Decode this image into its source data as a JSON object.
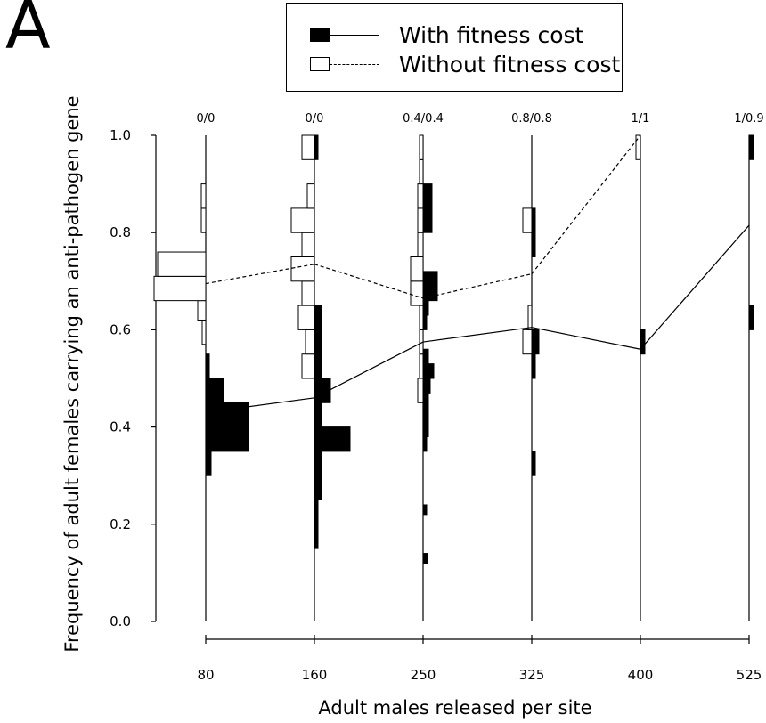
{
  "panel_label": "A",
  "legend": {
    "with_cost": "With fitness cost",
    "without_cost": "Without fitness cost"
  },
  "chart_data": {
    "type": "violin-histogram",
    "xlabel": "Adult males released per site",
    "ylabel": "Frequency of adult females carrying an anti-pathogen gene",
    "ylim": [
      0,
      1
    ],
    "yticks": [
      "0.0",
      "0.2",
      "0.4",
      "0.6",
      "0.8",
      "1.0"
    ],
    "categories": [
      "80",
      "160",
      "250",
      "325",
      "400",
      "525"
    ],
    "top_labels": [
      "0/0",
      "0/0",
      "0.4/0.4",
      "0.8/0.8",
      "1/1",
      "1/0.9"
    ],
    "series": [
      {
        "name": "With fitness cost",
        "side": "right",
        "style": "filled",
        "means": [
          0.43,
          0.46,
          0.575,
          0.605,
          0.56,
          0.815
        ],
        "histograms": [
          [
            [
              0.3,
              0.35,
              6
            ],
            [
              0.35,
              0.4,
              48
            ],
            [
              0.4,
              0.45,
              48
            ],
            [
              0.45,
              0.5,
              20
            ],
            [
              0.5,
              0.55,
              4
            ]
          ],
          [
            [
              0.15,
              0.2,
              4
            ],
            [
              0.2,
              0.25,
              4
            ],
            [
              0.25,
              0.3,
              8
            ],
            [
              0.3,
              0.35,
              8
            ],
            [
              0.35,
              0.4,
              40
            ],
            [
              0.4,
              0.45,
              8
            ],
            [
              0.45,
              0.5,
              18
            ],
            [
              0.5,
              0.55,
              8
            ],
            [
              0.55,
              0.6,
              8
            ],
            [
              0.6,
              0.65,
              8
            ],
            [
              0.95,
              1.0,
              4
            ]
          ],
          [
            [
              0.12,
              0.14,
              5
            ],
            [
              0.22,
              0.24,
              4
            ],
            [
              0.35,
              0.38,
              4
            ],
            [
              0.38,
              0.41,
              6
            ],
            [
              0.41,
              0.44,
              6
            ],
            [
              0.44,
              0.47,
              6
            ],
            [
              0.47,
              0.5,
              8
            ],
            [
              0.5,
              0.53,
              12
            ],
            [
              0.53,
              0.56,
              6
            ],
            [
              0.6,
              0.63,
              4
            ],
            [
              0.63,
              0.66,
              6
            ],
            [
              0.66,
              0.69,
              16
            ],
            [
              0.69,
              0.72,
              16
            ],
            [
              0.8,
              0.85,
              10
            ],
            [
              0.85,
              0.9,
              10
            ]
          ],
          [
            [
              0.3,
              0.35,
              4
            ],
            [
              0.5,
              0.55,
              4
            ],
            [
              0.55,
              0.6,
              8
            ],
            [
              0.75,
              0.8,
              4
            ],
            [
              0.8,
              0.85,
              4
            ]
          ],
          [
            [
              0.55,
              0.6,
              5
            ]
          ],
          [
            [
              0.6,
              0.65,
              5
            ],
            [
              0.95,
              1.0,
              5
            ]
          ]
        ]
      },
      {
        "name": "Without fitness cost",
        "side": "left",
        "style": "open",
        "means": [
          0.695,
          0.735,
          0.665,
          0.715,
          1.0,
          null
        ],
        "histograms": [
          [
            [
              0.57,
              0.62,
              4
            ],
            [
              0.62,
              0.66,
              9
            ],
            [
              0.66,
              0.71,
              58
            ],
            [
              0.71,
              0.76,
              54
            ],
            [
              0.8,
              0.85,
              5
            ],
            [
              0.85,
              0.9,
              5
            ]
          ],
          [
            [
              0.5,
              0.55,
              14
            ],
            [
              0.55,
              0.6,
              10
            ],
            [
              0.6,
              0.65,
              18
            ],
            [
              0.65,
              0.7,
              14
            ],
            [
              0.7,
              0.75,
              26
            ],
            [
              0.75,
              0.8,
              14
            ],
            [
              0.8,
              0.85,
              26
            ],
            [
              0.85,
              0.9,
              8
            ],
            [
              0.95,
              1.0,
              14
            ]
          ],
          [
            [
              0.45,
              0.5,
              6
            ],
            [
              0.5,
              0.55,
              4
            ],
            [
              0.55,
              0.6,
              4
            ],
            [
              0.6,
              0.65,
              4
            ],
            [
              0.65,
              0.7,
              14
            ],
            [
              0.7,
              0.75,
              14
            ],
            [
              0.75,
              0.8,
              6
            ],
            [
              0.8,
              0.85,
              6
            ],
            [
              0.85,
              0.9,
              6
            ],
            [
              0.9,
              0.95,
              4
            ],
            [
              0.95,
              1.0,
              4
            ]
          ],
          [
            [
              0.55,
              0.6,
              10
            ],
            [
              0.6,
              0.65,
              4
            ],
            [
              0.8,
              0.85,
              10
            ]
          ],
          [
            [
              0.95,
              1.0,
              5
            ]
          ],
          []
        ]
      }
    ],
    "legend_position": "top-center"
  }
}
